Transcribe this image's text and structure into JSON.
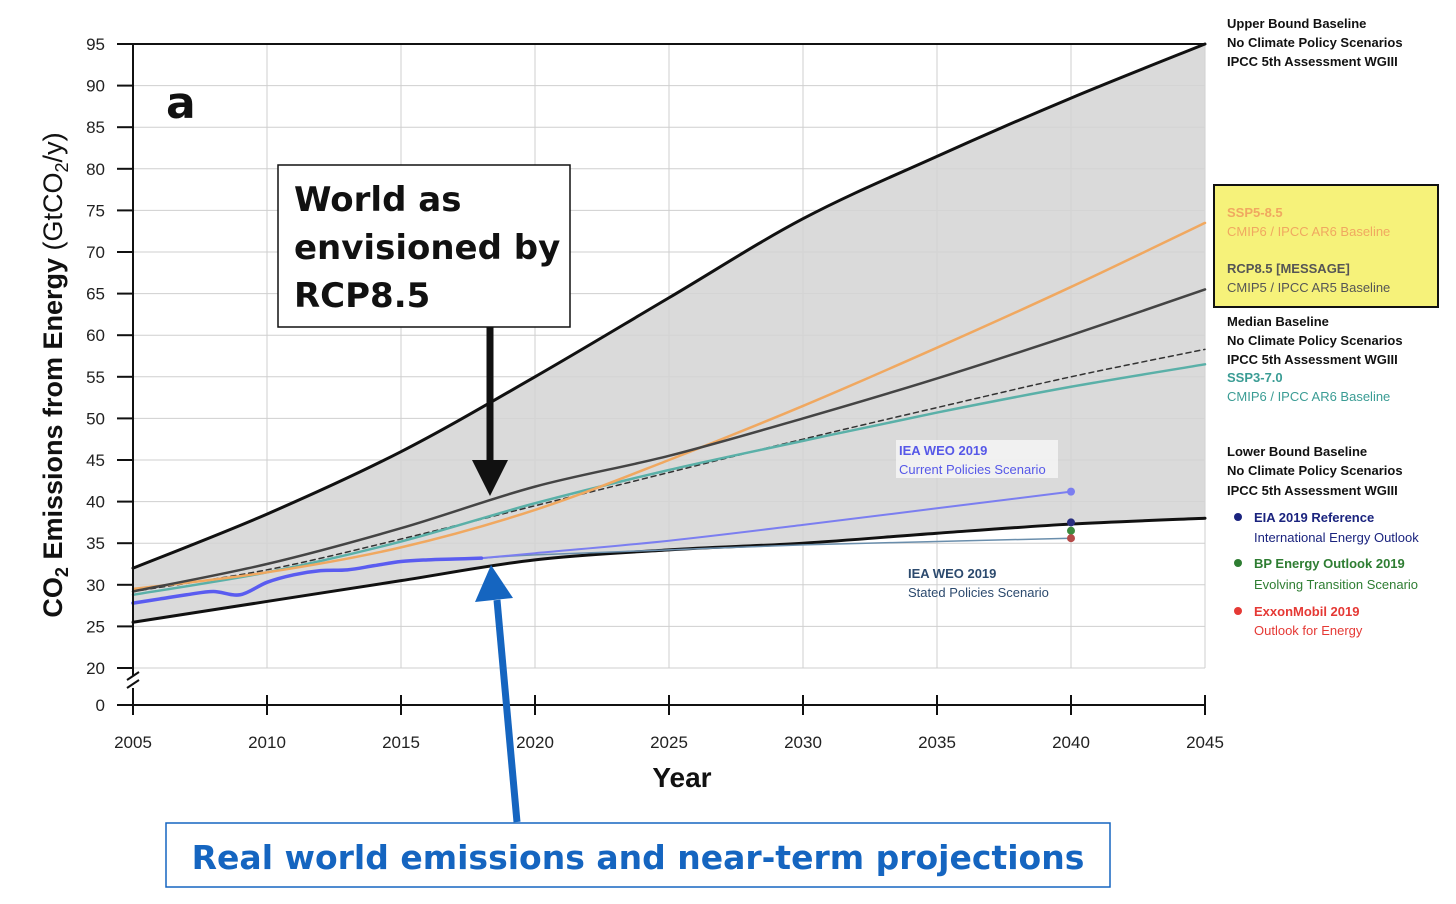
{
  "chart_data": {
    "type": "line",
    "panel_label": "a",
    "xlabel": "Year",
    "ylabel_parts": {
      "main": "CO",
      "sub": "2",
      "rest": " Emissions from Energy",
      "unit_open": " (GtCO",
      "unit_sub": "2",
      "unit_close": "/y)"
    },
    "xlim": [
      2005,
      2045
    ],
    "ylim": [
      20,
      95
    ],
    "y_axis_break": true,
    "y_zero_label": "0",
    "x_ticks": [
      2005,
      2010,
      2015,
      2020,
      2025,
      2030,
      2035,
      2040,
      2045
    ],
    "y_ticks": [
      20,
      25,
      30,
      35,
      40,
      45,
      50,
      55,
      60,
      65,
      70,
      75,
      80,
      85,
      90,
      95
    ],
    "grid": true,
    "colors": {
      "band": "#d4d4d4",
      "bounds": "#111111",
      "ssp585": "#f0a860",
      "rcp85": "#444444",
      "median": "#333333",
      "ssp370": "#5ab0a8",
      "iea_current": "#7b7ef0",
      "historical": "#5a5cf0",
      "iea_stated": "#6a8eac",
      "eia": "#1a237e",
      "bp": "#2e7d32",
      "exxon": "#c62828",
      "highlight": "#f6f27a",
      "callout_blue": "#1565c0"
    },
    "series": [
      {
        "key": "upper_bound",
        "x": [
          2005,
          2010,
          2015,
          2020,
          2025,
          2030,
          2035,
          2040,
          2045
        ],
        "y": [
          32,
          38.5,
          46,
          55,
          64.5,
          74,
          81.5,
          88.5,
          95
        ]
      },
      {
        "key": "lower_bound",
        "x": [
          2005,
          2010,
          2015,
          2020,
          2025,
          2030,
          2035,
          2040,
          2045
        ],
        "y": [
          25.5,
          28,
          30.5,
          33,
          34.2,
          35,
          36.2,
          37.3,
          38
        ]
      },
      {
        "key": "ssp585",
        "x": [
          2005,
          2010,
          2015,
          2020,
          2025,
          2030,
          2035,
          2040,
          2045
        ],
        "y": [
          29.5,
          31.5,
          34.5,
          39,
          45,
          51.5,
          58.5,
          65.8,
          73.5
        ]
      },
      {
        "key": "rcp85",
        "x": [
          2005,
          2010,
          2015,
          2020,
          2025,
          2030,
          2035,
          2040,
          2045
        ],
        "y": [
          29.2,
          32.5,
          36.8,
          41.8,
          45.5,
          50,
          54.8,
          60,
          65.5
        ]
      },
      {
        "key": "median",
        "x": [
          2005,
          2010,
          2015,
          2020,
          2025,
          2030,
          2035,
          2040,
          2045
        ],
        "y": [
          29.2,
          31.8,
          35.5,
          39.5,
          43.5,
          47.5,
          51.3,
          55,
          58.3
        ]
      },
      {
        "key": "ssp370",
        "x": [
          2005,
          2010,
          2015,
          2020,
          2025,
          2030,
          2035,
          2040,
          2045
        ],
        "y": [
          28.8,
          31.5,
          35.2,
          39.8,
          43.8,
          47.3,
          50.7,
          53.8,
          56.5
        ]
      },
      {
        "key": "historical",
        "x": [
          2005,
          2006,
          2007,
          2008,
          2009,
          2010,
          2011,
          2012,
          2013,
          2014,
          2015,
          2016,
          2017,
          2018
        ],
        "y": [
          27.8,
          28.3,
          28.8,
          29.2,
          28.8,
          30.3,
          31.2,
          31.7,
          31.8,
          32.3,
          32.8,
          33.0,
          33.1,
          33.2
        ]
      },
      {
        "key": "iea_current",
        "x": [
          2018,
          2020,
          2025,
          2030,
          2035,
          2040
        ],
        "y": [
          33.2,
          33.8,
          35.3,
          37.2,
          39.2,
          41.2
        ]
      },
      {
        "key": "iea_stated",
        "x": [
          2018,
          2020,
          2025,
          2030,
          2035,
          2040
        ],
        "y": [
          33.2,
          33.6,
          34.2,
          34.8,
          35.2,
          35.6
        ]
      }
    ],
    "points": [
      {
        "key": "iea_current",
        "x": 2040,
        "y": 41.2
      },
      {
        "key": "eia",
        "x": 2040,
        "y": 37.5
      },
      {
        "key": "bp",
        "x": 2040,
        "y": 36.5
      },
      {
        "key": "exxon",
        "x": 2040,
        "y": 35.6
      }
    ],
    "annotations": {
      "iea_current": {
        "line1": "IEA WEO 2019",
        "line2": "Current Policies Scenario"
      },
      "iea_stated": {
        "line1": "IEA WEO 2019",
        "line2": "Stated Policies Scenario"
      }
    },
    "legend": {
      "upper": [
        "Upper Bound Baseline",
        "No Climate Policy Scenarios",
        "IPCC 5th Assessment WGIII"
      ],
      "ssp585": {
        "name": "SSP5-8.5",
        "desc": "CMIP6 / IPCC AR6 Baseline"
      },
      "rcp85": {
        "name": "RCP8.5 [MESSAGE]",
        "desc": "CMIP5 / IPCC AR5 Baseline"
      },
      "median": [
        "Median Baseline",
        "No Climate Policy Scenarios",
        "IPCC 5th Assessment WGIII"
      ],
      "ssp370": {
        "name": "SSP3-7.0",
        "desc": "CMIP6 / IPCC AR6 Baseline"
      },
      "lower": [
        "Lower Bound Baseline",
        "No Climate Policy Scenarios",
        "IPCC 5th Assessment WGIII"
      ],
      "eia": {
        "name": "EIA 2019 Reference",
        "desc": "International Energy Outlook"
      },
      "bp": {
        "name": "BP Energy Outlook 2019",
        "desc": "Evolving Transition Scenario"
      },
      "exxon": {
        "name": "ExxonMobil 2019",
        "desc": "Outlook for Energy"
      }
    },
    "callouts": {
      "rcp": [
        "World as",
        "envisioned by",
        "RCP8.5"
      ],
      "real": "Real world emissions and near-term projections"
    }
  }
}
